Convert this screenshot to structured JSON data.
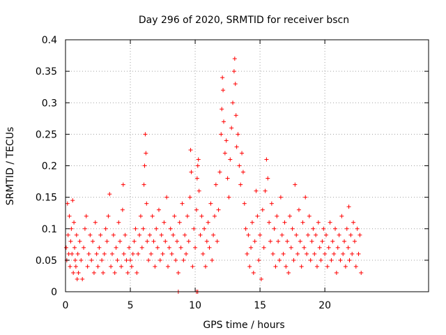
{
  "chart_data": {
    "type": "scatter",
    "title": "Day 296 of 2020, SRMTID for receiver bscn",
    "xlabel": "GPS time / hours",
    "ylabel": "SRMTID / TECUs",
    "xlim": [
      0,
      28
    ],
    "ylim": [
      0,
      0.4
    ],
    "xticks": [
      0,
      5,
      10,
      15,
      20
    ],
    "xtick_labels": [
      "0",
      "5",
      "10",
      "15",
      "20"
    ],
    "yticks": [
      0,
      0.05,
      0.1,
      0.15,
      0.2,
      0.25,
      0.3,
      0.35,
      0.4
    ],
    "ytick_labels": [
      "0",
      "0.05",
      "0.1",
      "0.15",
      "0.2",
      "0.25",
      "0.3",
      "0.35",
      "0.4"
    ],
    "grid": true,
    "series": [
      {
        "name": "SRMTID",
        "color": "#ff0000",
        "marker": "plus",
        "points": [
          [
            0.05,
            0.07
          ],
          [
            0.1,
            0.05
          ],
          [
            0.15,
            0.14
          ],
          [
            0.2,
            0.09
          ],
          [
            0.25,
            0.06
          ],
          [
            0.3,
            0.12
          ],
          [
            0.35,
            0.04
          ],
          [
            0.4,
            0.08
          ],
          [
            0.45,
            0.1
          ],
          [
            0.5,
            0.06
          ],
          [
            0.55,
            0.145
          ],
          [
            0.6,
            0.03
          ],
          [
            0.65,
            0.11
          ],
          [
            0.7,
            0.07
          ],
          [
            0.75,
            0.05
          ],
          [
            0.8,
            0.04
          ],
          [
            0.85,
            0.09
          ],
          [
            0.9,
            0.02
          ],
          [
            0.95,
            0.06
          ],
          [
            1.0,
            0.03
          ],
          [
            1.1,
            0.08
          ],
          [
            1.2,
            0.05
          ],
          [
            1.3,
            0.02
          ],
          [
            1.4,
            0.07
          ],
          [
            1.5,
            0.1
          ],
          [
            1.6,
            0.12
          ],
          [
            1.7,
            0.04
          ],
          [
            1.8,
            0.06
          ],
          [
            1.9,
            0.09
          ],
          [
            2.0,
            0.05
          ],
          [
            2.1,
            0.08
          ],
          [
            2.2,
            0.03
          ],
          [
            2.3,
            0.11
          ],
          [
            2.4,
            0.06
          ],
          [
            2.5,
            0.04
          ],
          [
            2.6,
            0.07
          ],
          [
            2.7,
            0.09
          ],
          [
            2.8,
            0.05
          ],
          [
            2.9,
            0.03
          ],
          [
            3.0,
            0.06
          ],
          [
            3.1,
            0.1
          ],
          [
            3.2,
            0.08
          ],
          [
            3.3,
            0.12
          ],
          [
            3.4,
            0.155
          ],
          [
            3.5,
            0.04
          ],
          [
            3.6,
            0.06
          ],
          [
            3.7,
            0.09
          ],
          [
            3.8,
            0.03
          ],
          [
            3.9,
            0.07
          ],
          [
            4.0,
            0.05
          ],
          [
            4.1,
            0.11
          ],
          [
            4.2,
            0.08
          ],
          [
            4.3,
            0.04
          ],
          [
            4.4,
            0.13
          ],
          [
            4.45,
            0.17
          ],
          [
            4.5,
            0.06
          ],
          [
            4.6,
            0.09
          ],
          [
            4.7,
            0.05
          ],
          [
            4.8,
            0.03
          ],
          [
            4.9,
            0.07
          ],
          [
            5.0,
            0.05
          ],
          [
            5.1,
            0.04
          ],
          [
            5.2,
            0.06
          ],
          [
            5.3,
            0.08
          ],
          [
            5.4,
            0.1
          ],
          [
            5.5,
            0.03
          ],
          [
            5.6,
            0.06
          ],
          [
            5.7,
            0.09
          ],
          [
            5.8,
            0.12
          ],
          [
            5.9,
            0.07
          ],
          [
            6.0,
            0.1
          ],
          [
            6.05,
            0.17
          ],
          [
            6.1,
            0.2
          ],
          [
            6.15,
            0.25
          ],
          [
            6.2,
            0.22
          ],
          [
            6.25,
            0.14
          ],
          [
            6.3,
            0.08
          ],
          [
            6.4,
            0.05
          ],
          [
            6.5,
            0.09
          ],
          [
            6.6,
            0.06
          ],
          [
            6.7,
            0.12
          ],
          [
            6.8,
            0.08
          ],
          [
            6.9,
            0.04
          ],
          [
            7.0,
            0.1
          ],
          [
            7.1,
            0.07
          ],
          [
            7.2,
            0.13
          ],
          [
            7.3,
            0.05
          ],
          [
            7.4,
            0.09
          ],
          [
            7.5,
            0.06
          ],
          [
            7.6,
            0.11
          ],
          [
            7.7,
            0.08
          ],
          [
            7.8,
            0.15
          ],
          [
            7.9,
            0.04
          ],
          [
            8.0,
            0.07
          ],
          [
            8.1,
            0.1
          ],
          [
            8.2,
            0.06
          ],
          [
            8.3,
            0.09
          ],
          [
            8.4,
            0.12
          ],
          [
            8.5,
            0.05
          ],
          [
            8.6,
            0.08
          ],
          [
            8.7,
            0.03
          ],
          [
            8.8,
            0.11
          ],
          [
            8.9,
            0.07
          ],
          [
            9.0,
            0.14
          ],
          [
            9.1,
            0.05
          ],
          [
            9.2,
            0.09
          ],
          [
            9.3,
            0.06
          ],
          [
            9.4,
            0.12
          ],
          [
            9.5,
            0.08
          ],
          [
            9.6,
            0.15
          ],
          [
            9.65,
            0.225
          ],
          [
            9.7,
            0.19
          ],
          [
            9.8,
            0.04
          ],
          [
            9.9,
            0.1
          ],
          [
            10.0,
            0.07
          ],
          [
            10.1,
            0.13
          ],
          [
            10.15,
            0.18
          ],
          [
            10.2,
            0.2
          ],
          [
            10.25,
            0.21
          ],
          [
            10.3,
            0.16
          ],
          [
            10.4,
            0.09
          ],
          [
            10.5,
            0.12
          ],
          [
            10.6,
            0.06
          ],
          [
            10.7,
            0.1
          ],
          [
            10.8,
            0.04
          ],
          [
            10.9,
            0.08
          ],
          [
            11.0,
            0.11
          ],
          [
            11.1,
            0.07
          ],
          [
            11.2,
            0.14
          ],
          [
            11.3,
            0.05
          ],
          [
            11.4,
            0.09
          ],
          [
            11.5,
            0.12
          ],
          [
            11.6,
            0.17
          ],
          [
            11.7,
            0.08
          ],
          [
            11.8,
            0.13
          ],
          [
            11.9,
            0.19
          ],
          [
            12.0,
            0.25
          ],
          [
            12.05,
            0.29
          ],
          [
            12.1,
            0.34
          ],
          [
            12.15,
            0.32
          ],
          [
            12.2,
            0.27
          ],
          [
            12.3,
            0.22
          ],
          [
            12.4,
            0.24
          ],
          [
            12.5,
            0.18
          ],
          [
            12.6,
            0.15
          ],
          [
            12.7,
            0.21
          ],
          [
            12.8,
            0.26
          ],
          [
            12.9,
            0.3
          ],
          [
            13.0,
            0.35
          ],
          [
            13.05,
            0.37
          ],
          [
            13.1,
            0.33
          ],
          [
            13.15,
            0.28
          ],
          [
            13.2,
            0.23
          ],
          [
            13.3,
            0.25
          ],
          [
            13.4,
            0.2
          ],
          [
            13.5,
            0.17
          ],
          [
            13.6,
            0.22
          ],
          [
            13.7,
            0.19
          ],
          [
            13.8,
            0.14
          ],
          [
            13.9,
            0.1
          ],
          [
            14.0,
            0.06
          ],
          [
            14.1,
            0.09
          ],
          [
            14.2,
            0.04
          ],
          [
            14.3,
            0.07
          ],
          [
            14.4,
            0.11
          ],
          [
            14.5,
            0.03
          ],
          [
            14.6,
            0.08
          ],
          [
            14.7,
            0.16
          ],
          [
            14.8,
            0.12
          ],
          [
            14.9,
            0.05
          ],
          [
            15.0,
            0.09
          ],
          [
            15.1,
            0.02
          ],
          [
            15.2,
            0.13
          ],
          [
            15.3,
            0.07
          ],
          [
            15.4,
            0.16
          ],
          [
            15.5,
            0.21
          ],
          [
            15.6,
            0.18
          ],
          [
            15.7,
            0.11
          ],
          [
            15.8,
            0.08
          ],
          [
            15.9,
            0.14
          ],
          [
            16.0,
            0.06
          ],
          [
            16.1,
            0.1
          ],
          [
            16.2,
            0.04
          ],
          [
            16.3,
            0.12
          ],
          [
            16.4,
            0.08
          ],
          [
            16.5,
            0.05
          ],
          [
            16.6,
            0.15
          ],
          [
            16.7,
            0.09
          ],
          [
            16.8,
            0.06
          ],
          [
            16.9,
            0.11
          ],
          [
            17.0,
            0.04
          ],
          [
            17.1,
            0.08
          ],
          [
            17.2,
            0.03
          ],
          [
            17.3,
            0.12
          ],
          [
            17.4,
            0.07
          ],
          [
            17.5,
            0.1
          ],
          [
            17.6,
            0.05
          ],
          [
            17.7,
            0.17
          ],
          [
            17.8,
            0.09
          ],
          [
            17.9,
            0.06
          ],
          [
            18.0,
            0.13
          ],
          [
            18.1,
            0.08
          ],
          [
            18.2,
            0.04
          ],
          [
            18.3,
            0.11
          ],
          [
            18.4,
            0.07
          ],
          [
            18.5,
            0.15
          ],
          [
            18.6,
            0.06
          ],
          [
            18.7,
            0.09
          ],
          [
            18.8,
            0.12
          ],
          [
            18.9,
            0.05
          ],
          [
            19.0,
            0.08
          ],
          [
            19.1,
            0.1
          ],
          [
            19.2,
            0.06
          ],
          [
            19.3,
            0.09
          ],
          [
            19.4,
            0.04
          ],
          [
            19.5,
            0.11
          ],
          [
            19.6,
            0.07
          ],
          [
            19.7,
            0.05
          ],
          [
            19.8,
            0.08
          ],
          [
            19.9,
            0.1
          ],
          [
            20.0,
            0.06
          ],
          [
            20.1,
            0.09
          ],
          [
            20.2,
            0.04
          ],
          [
            20.3,
            0.07
          ],
          [
            20.4,
            0.11
          ],
          [
            20.5,
            0.05
          ],
          [
            20.6,
            0.08
          ],
          [
            20.7,
            0.06
          ],
          [
            20.8,
            0.1
          ],
          [
            20.9,
            0.03
          ],
          [
            21.0,
            0.07
          ],
          [
            21.1,
            0.09
          ],
          [
            21.2,
            0.05
          ],
          [
            21.3,
            0.12
          ],
          [
            21.4,
            0.06
          ],
          [
            21.5,
            0.08
          ],
          [
            21.6,
            0.04
          ],
          [
            21.7,
            0.1
          ],
          [
            21.8,
            0.07
          ],
          [
            21.85,
            0.135
          ],
          [
            21.9,
            0.05
          ],
          [
            22.0,
            0.09
          ],
          [
            22.1,
            0.06
          ],
          [
            22.2,
            0.11
          ],
          [
            22.3,
            0.08
          ],
          [
            22.4,
            0.04
          ],
          [
            22.5,
            0.1
          ],
          [
            22.6,
            0.06
          ],
          [
            22.7,
            0.09
          ],
          [
            22.8,
            0.03
          ],
          [
            8.7,
            0.0
          ],
          [
            10.1,
            0.0
          ],
          [
            10.2,
            0.0
          ]
        ]
      }
    ]
  }
}
